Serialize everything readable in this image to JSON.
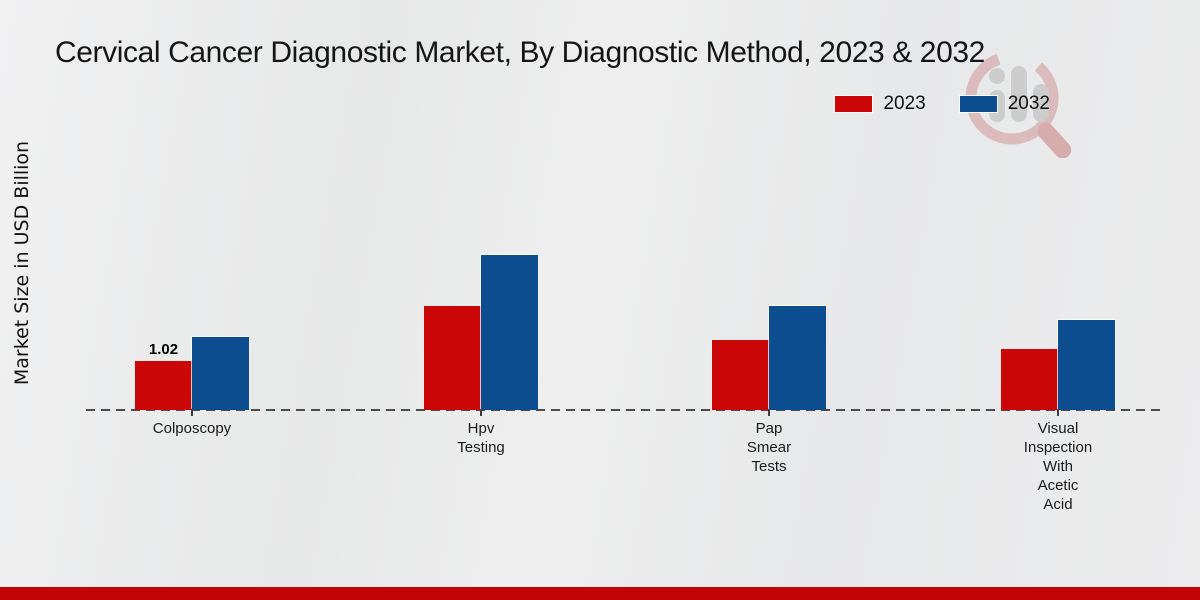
{
  "header": {
    "title": "Cervical Cancer Diagnostic Market, By Diagnostic Method, 2023 & 2032"
  },
  "watermark": {
    "name": "market-research-logo"
  },
  "chart_data": {
    "type": "bar",
    "title": "Cervical Cancer Diagnostic Market, By Diagnostic Method, 2023 & 2032",
    "xlabel": "",
    "ylabel": "Market Size in USD Billion",
    "ylim": [
      0,
      3.5
    ],
    "grid": false,
    "legend_position": "top-right",
    "baseline_style": "dashed",
    "categories": [
      "Colposcopy",
      "Hpv Testing",
      "Pap Smear Tests",
      "Visual Inspection With Acetic Acid"
    ],
    "category_lines": [
      [
        "Colposcopy"
      ],
      [
        "Hpv",
        "Testing"
      ],
      [
        "Pap",
        "Smear",
        "Tests"
      ],
      [
        "Visual",
        "Inspection",
        "With",
        "Acetic",
        "Acid"
      ]
    ],
    "series": [
      {
        "name": "2023",
        "color": "#cb0606",
        "values": [
          1.02,
          2.15,
          1.45,
          1.25
        ]
      },
      {
        "name": "2032",
        "color": "#0b4d8e",
        "values": [
          1.5,
          3.2,
          2.15,
          1.85
        ]
      }
    ],
    "annotations": [
      {
        "category_index": 0,
        "series_index": 0,
        "text": "1.02"
      }
    ]
  },
  "footer": {
    "accent_color": "#c10505"
  }
}
